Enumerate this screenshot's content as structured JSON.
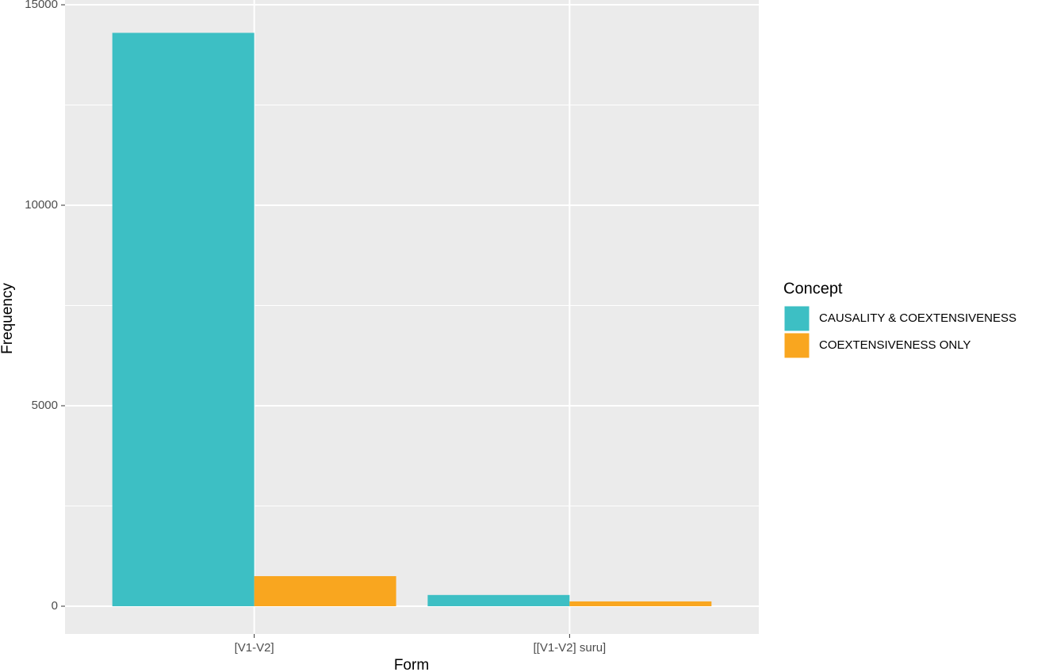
{
  "chart_data": {
    "type": "bar",
    "x_label": "Form",
    "y_label": "Frequency",
    "categories": [
      "[V1-V2]",
      "[[V1-V2] suru]"
    ],
    "series": [
      {
        "name": "CAUSALITY & COEXTENSIVENESS",
        "color": "#3dbfc4",
        "values": [
          14300,
          280
        ]
      },
      {
        "name": "COEXTENSIVENESS ONLY",
        "color": "#f9a61f",
        "values": [
          750,
          120
        ]
      }
    ],
    "legend_title": "Concept",
    "legend_position": "right",
    "ylim": [
      -692,
      15119
    ],
    "yticks": [
      0,
      5000,
      10000,
      15000
    ],
    "minor_yticks": [
      2500,
      7500,
      12500
    ],
    "grid": true
  }
}
